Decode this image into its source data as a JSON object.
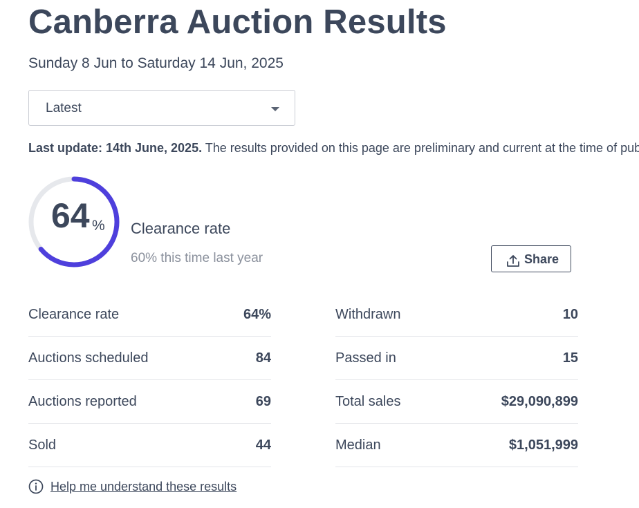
{
  "header": {
    "title": "Canberra Auction Results",
    "date_range": "Sunday 8 Jun to Saturday 14 Jun, 2025"
  },
  "period_select": {
    "selected": "Latest"
  },
  "update_notice": {
    "bold": "Last update: 14th June, 2025.",
    "text": " The results provided on this page are preliminary and current at the time of publication"
  },
  "clearance": {
    "rate": 64,
    "rate_number": "64",
    "rate_unit": "%",
    "label": "Clearance rate",
    "comparison": "60% this time last year",
    "accent_color": "#4e3fdc",
    "track_color": "#e6e8ec"
  },
  "share": {
    "label": "Share",
    "icon": "share-upload-icon"
  },
  "stats": {
    "left": [
      {
        "label": "Clearance rate",
        "value": "64%"
      },
      {
        "label": "Auctions scheduled",
        "value": "84"
      },
      {
        "label": "Auctions reported",
        "value": "69"
      },
      {
        "label": "Sold",
        "value": "44"
      }
    ],
    "right": [
      {
        "label": "Withdrawn",
        "value": "10"
      },
      {
        "label": "Passed in",
        "value": "15"
      },
      {
        "label": "Total sales",
        "value": "$29,090,899"
      },
      {
        "label": "Median",
        "value": "$1,051,999"
      }
    ]
  },
  "help": {
    "label": "Help me understand these results",
    "icon": "info-icon"
  }
}
